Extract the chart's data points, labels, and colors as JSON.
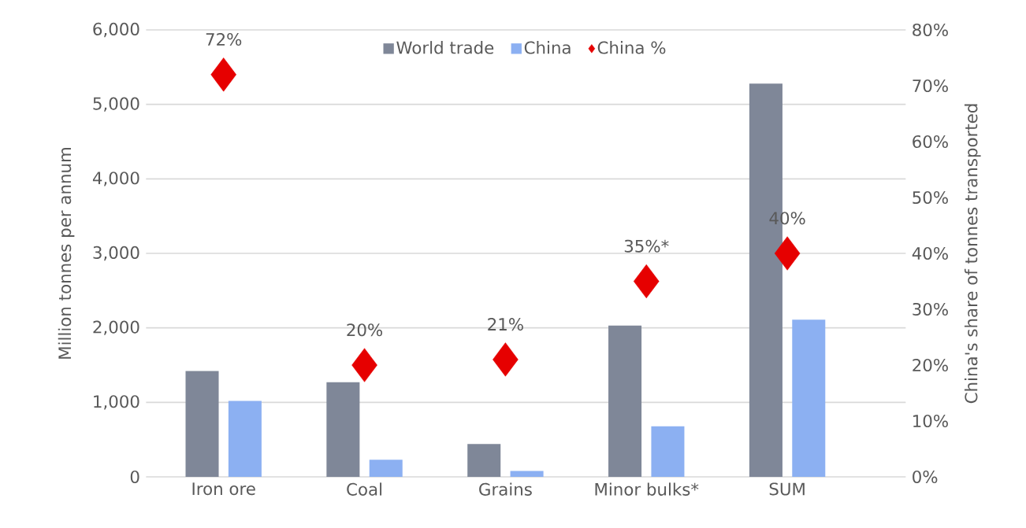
{
  "chart_data": {
    "type": "bar",
    "categories": [
      "Iron ore",
      "Coal",
      "Grains",
      "Minor bulks*",
      "SUM"
    ],
    "ylabel": "Million tonnes per annum",
    "y2label": "China's share of tonnes transported",
    "series": [
      {
        "name": "World trade",
        "color": "#7f8798",
        "values": [
          1420,
          1270,
          440,
          2030,
          5280
        ]
      },
      {
        "name": "China",
        "color": "#8cb0f2",
        "values": [
          1020,
          230,
          80,
          680,
          2110
        ]
      },
      {
        "name": "China %",
        "type": "scatter",
        "axis": "y2",
        "marker": "diamond",
        "color": "#e60000",
        "values": [
          72,
          20,
          21,
          35,
          40
        ],
        "value_labels": [
          "72%",
          "20%",
          "21%",
          "35%*",
          "40%"
        ]
      }
    ],
    "ylim": [
      0,
      6000
    ],
    "yticks": [
      0,
      {
        "value": 1000,
        "label": "1,000"
      },
      {
        "value": 2000,
        "label": "2,000"
      },
      {
        "value": 3000,
        "label": "3,000"
      },
      {
        "value": 4000,
        "label": "4,000"
      },
      {
        "value": 5000,
        "label": "5,000"
      },
      {
        "value": 6000,
        "label": "6,000"
      }
    ],
    "y2lim": [
      0,
      80
    ],
    "y2ticks": [
      {
        "value": 0,
        "label": "0%"
      },
      {
        "value": 10,
        "label": "10%"
      },
      {
        "value": 20,
        "label": "20%"
      },
      {
        "value": 30,
        "label": "30%"
      },
      {
        "value": 40,
        "label": "40%"
      },
      {
        "value": 50,
        "label": "50%"
      },
      {
        "value": 60,
        "label": "60%"
      },
      {
        "value": 70,
        "label": "70%"
      },
      {
        "value": 80,
        "label": "80%"
      }
    ],
    "grid": "y",
    "legend": "top"
  }
}
